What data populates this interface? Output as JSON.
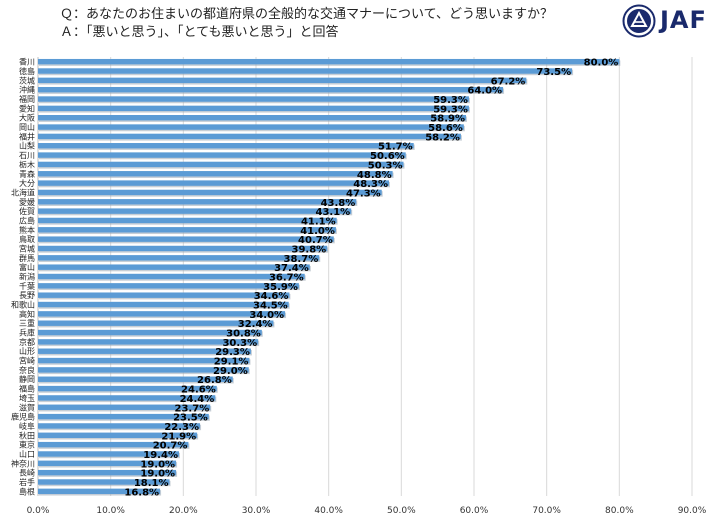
{
  "header": {
    "question": "Ｑ：あなたのお住まいの都道府県の全般的な交通マナーについて、どう思いますか？",
    "answer": "Ａ：「悪いと思う」、「とても悪いと思う」と回答"
  },
  "brand": {
    "logo_text": "JAF",
    "logo_color": "#1a2a6c"
  },
  "colors": {
    "bar": "#5b9bd5",
    "grid": "#d9d9d9"
  },
  "chart_data": {
    "type": "bar",
    "orientation": "horizontal",
    "categories": [
      "香川",
      "徳島",
      "茨城",
      "沖縄",
      "福岡",
      "愛知",
      "大阪",
      "岡山",
      "福井",
      "山梨",
      "石川",
      "栃木",
      "青森",
      "大分",
      "北海道",
      "愛媛",
      "佐賀",
      "広島",
      "熊本",
      "鳥取",
      "宮城",
      "群馬",
      "富山",
      "新潟",
      "千葉",
      "長野",
      "和歌山",
      "高知",
      "三重",
      "兵庫",
      "京都",
      "山形",
      "宮崎",
      "奈良",
      "静岡",
      "福島",
      "埼玉",
      "滋賀",
      "鹿児島",
      "岐阜",
      "秋田",
      "東京",
      "山口",
      "神奈川",
      "長崎",
      "岩手",
      "島根"
    ],
    "values": [
      80.0,
      73.5,
      67.2,
      64.0,
      59.3,
      59.3,
      58.9,
      58.6,
      58.2,
      51.7,
      50.6,
      50.3,
      48.8,
      48.3,
      47.3,
      43.8,
      43.1,
      41.1,
      41.0,
      40.7,
      39.8,
      38.7,
      37.4,
      36.7,
      35.9,
      34.6,
      34.5,
      34.0,
      32.4,
      30.8,
      30.3,
      29.3,
      29.1,
      29.0,
      26.8,
      24.6,
      24.4,
      23.7,
      23.5,
      22.3,
      21.9,
      20.7,
      19.4,
      19.0,
      19.0,
      18.1,
      16.8
    ],
    "value_labels": [
      "80.0%",
      "73.5%",
      "67.2%",
      "64.0%",
      "59.3%",
      "59.3%",
      "58.9%",
      "58.6%",
      "58.2%",
      "51.7%",
      "50.6%",
      "50.3%",
      "48.8%",
      "48.3%",
      "47.3%",
      "43.8%",
      "43.1%",
      "41.1%",
      "41.0%",
      "40.7%",
      "39.8%",
      "38.7%",
      "37.4%",
      "36.7%",
      "35.9%",
      "34.6%",
      "34.5%",
      "34.0%",
      "32.4%",
      "30.8%",
      "30.3%",
      "29.3%",
      "29.1%",
      "29.0%",
      "26.8%",
      "24.6%",
      "24.4%",
      "23.7%",
      "23.5%",
      "22.3%",
      "21.9%",
      "20.7%",
      "19.4%",
      "19.0%",
      "19.0%",
      "18.1%",
      "16.8%"
    ],
    "xlim": [
      0,
      90
    ],
    "xticks": [
      "0.0%",
      "10.0%",
      "20.0%",
      "30.0%",
      "40.0%",
      "50.0%",
      "60.0%",
      "70.0%",
      "80.0%",
      "90.0%"
    ],
    "grid": true,
    "legend": "none"
  }
}
